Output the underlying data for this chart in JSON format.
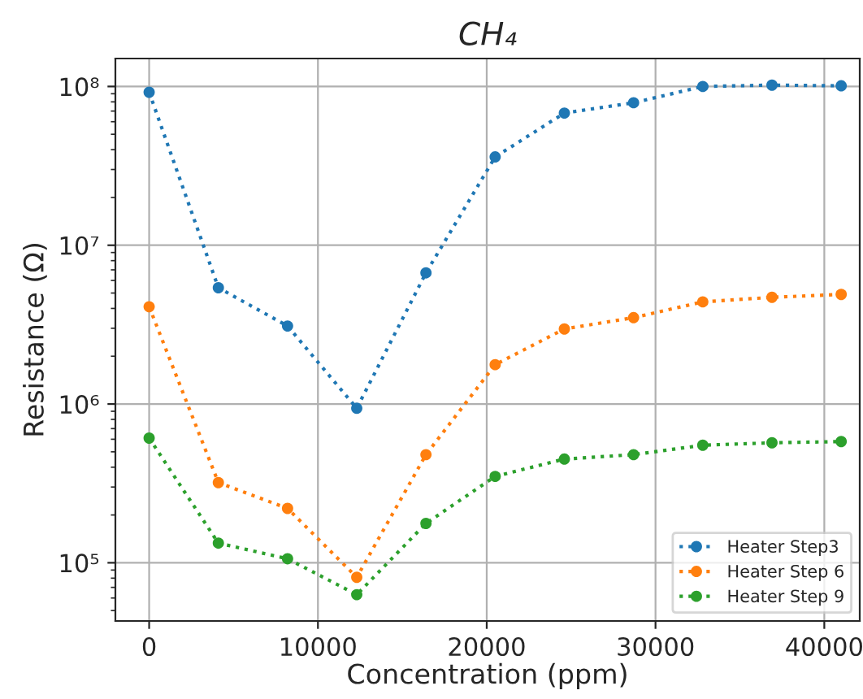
{
  "chart_data": {
    "type": "line",
    "title": "CH₄",
    "xlabel": "Concentration (ppm)",
    "ylabel": "Resistance (Ω)",
    "x": [
      0,
      4100,
      8200,
      12300,
      16400,
      20500,
      24600,
      28700,
      32800,
      36900,
      41000
    ],
    "series": [
      {
        "name": "Heater Step3",
        "color": "#1f77b4",
        "values": [
          92000000,
          5400000,
          3100000,
          940000,
          6700000,
          36000000,
          68000000,
          79000000,
          100000000,
          102000000,
          101000000
        ]
      },
      {
        "name": "Heater Step 6",
        "color": "#ff7f0e",
        "values": [
          4100000,
          320000,
          220000,
          81000,
          480000,
          1770000,
          2970000,
          3500000,
          4400000,
          4700000,
          4900000
        ]
      },
      {
        "name": "Heater Step 9",
        "color": "#2ca02c",
        "values": [
          610000,
          133000,
          106000,
          63000,
          177000,
          350000,
          450000,
          480000,
          550000,
          570000,
          580000
        ]
      }
    ],
    "log": "y",
    "xlim": [
      -2000,
      42100
    ],
    "ylim": [
      43000,
      150000000
    ],
    "xticks": [
      0,
      10000,
      20000,
      30000,
      40000
    ],
    "yticks": [
      {
        "value": 100000,
        "label": "10⁵"
      },
      {
        "value": 1000000,
        "label": "10⁶"
      },
      {
        "value": 10000000,
        "label": "10⁷"
      },
      {
        "value": 100000000,
        "label": "10⁸"
      }
    ],
    "grid": true,
    "legend": "bottom right",
    "marker": "circle",
    "line_style": "dotted"
  }
}
